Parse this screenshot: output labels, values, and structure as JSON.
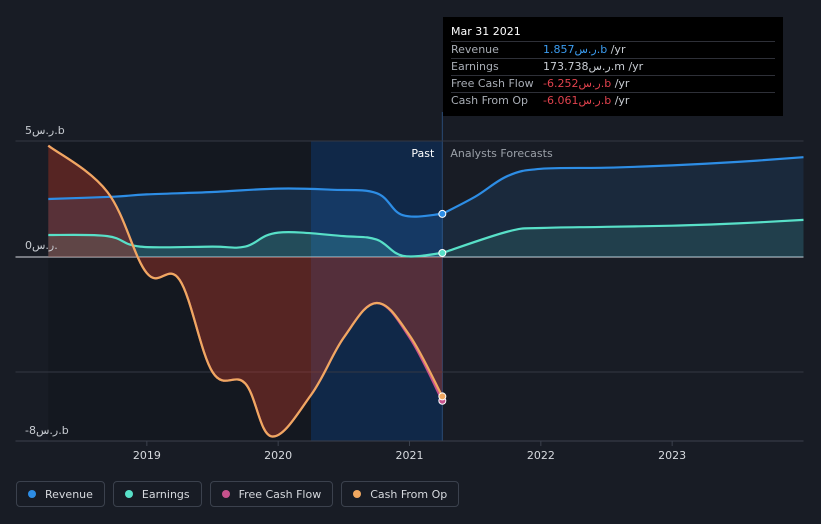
{
  "colors": {
    "background": "#181c25",
    "revenue": "#2d8de5",
    "earnings": "#58e0c8",
    "free_cash_flow": "#c6528c",
    "cash_from_op": "#f0a860",
    "past_region": "#0f2a4d"
  },
  "tooltip": {
    "date": "Mar 31 2021",
    "rows": [
      {
        "label": "Revenue",
        "value": "1.857ر.س.b",
        "unit": " /yr",
        "color": "#3b9cf0"
      },
      {
        "label": "Earnings",
        "value": "173.738ر.س.m",
        "unit": " /yr",
        "color": "#c8ccd2"
      },
      {
        "label": "Free Cash Flow",
        "value": "-6.252ر.س.b",
        "unit": " /yr",
        "color": "#e0424d"
      },
      {
        "label": "Cash From Op",
        "value": "-6.061ر.س.b",
        "unit": " /yr",
        "color": "#e0424d"
      }
    ]
  },
  "labels": {
    "past": "Past",
    "forecast": "Analysts Forecasts"
  },
  "legend": [
    {
      "label": "Revenue",
      "color": "#2d8de5"
    },
    {
      "label": "Earnings",
      "color": "#58e0c8"
    },
    {
      "label": "Free Cash Flow",
      "color": "#c6528c"
    },
    {
      "label": "Cash From Op",
      "color": "#f0a860"
    }
  ],
  "chart_data": {
    "type": "area",
    "x_ticks": [
      "2019",
      "2020",
      "2021",
      "2022",
      "2023"
    ],
    "y_tick_labels": [
      "5ر.س.b",
      "0ر.س.",
      "-8ر.س.b"
    ],
    "ylim": [
      -8,
      5
    ],
    "past_end": 2021.25,
    "series": [
      {
        "name": "Revenue",
        "past": [
          [
            2018.25,
            2.5
          ],
          [
            2018.75,
            2.6
          ],
          [
            2019.0,
            2.7
          ],
          [
            2019.5,
            2.8
          ],
          [
            2020.0,
            2.95
          ],
          [
            2020.4,
            2.9
          ],
          [
            2020.75,
            2.75
          ],
          [
            2020.95,
            1.8
          ],
          [
            2021.25,
            1.857
          ]
        ],
        "forecast": [
          [
            2021.25,
            1.857
          ],
          [
            2021.5,
            2.6
          ],
          [
            2021.75,
            3.5
          ],
          [
            2022.0,
            3.8
          ],
          [
            2022.5,
            3.85
          ],
          [
            2023.0,
            3.95
          ],
          [
            2023.5,
            4.1
          ],
          [
            2024.0,
            4.3
          ]
        ]
      },
      {
        "name": "Earnings",
        "past": [
          [
            2018.25,
            0.95
          ],
          [
            2018.7,
            0.9
          ],
          [
            2018.95,
            0.45
          ],
          [
            2019.5,
            0.45
          ],
          [
            2019.75,
            0.45
          ],
          [
            2020.0,
            1.05
          ],
          [
            2020.5,
            0.9
          ],
          [
            2020.75,
            0.75
          ],
          [
            2020.95,
            0.05
          ],
          [
            2021.25,
            0.174
          ]
        ],
        "forecast": [
          [
            2021.25,
            0.174
          ],
          [
            2021.75,
            1.1
          ],
          [
            2022.0,
            1.25
          ],
          [
            2022.5,
            1.3
          ],
          [
            2023.0,
            1.35
          ],
          [
            2023.5,
            1.45
          ],
          [
            2024.0,
            1.6
          ]
        ]
      },
      {
        "name": "Free Cash Flow",
        "past": [
          [
            2018.25,
            4.8
          ],
          [
            2018.7,
            2.8
          ],
          [
            2019.0,
            -0.7
          ],
          [
            2019.25,
            -1.0
          ],
          [
            2019.5,
            -5.0
          ],
          [
            2019.75,
            -5.5
          ],
          [
            2019.95,
            -7.8
          ],
          [
            2020.25,
            -6.0
          ],
          [
            2020.5,
            -3.5
          ],
          [
            2020.75,
            -2.0
          ],
          [
            2021.0,
            -3.5
          ],
          [
            2021.25,
            -6.252
          ]
        ],
        "forecast": []
      },
      {
        "name": "Cash From Op",
        "past": [
          [
            2018.25,
            4.8
          ],
          [
            2018.7,
            2.8
          ],
          [
            2019.0,
            -0.7
          ],
          [
            2019.25,
            -1.0
          ],
          [
            2019.5,
            -5.0
          ],
          [
            2019.75,
            -5.5
          ],
          [
            2019.95,
            -7.8
          ],
          [
            2020.25,
            -6.0
          ],
          [
            2020.5,
            -3.5
          ],
          [
            2020.75,
            -2.0
          ],
          [
            2021.0,
            -3.4
          ],
          [
            2021.25,
            -6.061
          ]
        ],
        "forecast": []
      }
    ]
  }
}
